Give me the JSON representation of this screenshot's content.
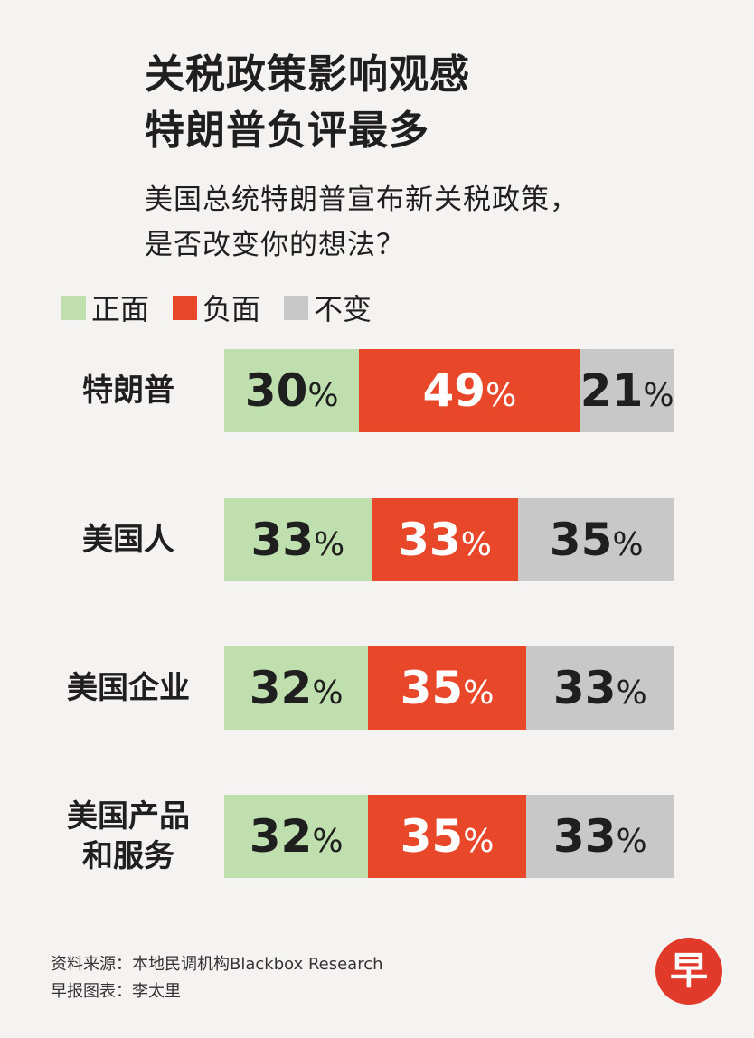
{
  "title_lines": [
    "关税政策影响观感",
    "特朗普负评最多"
  ],
  "subtitle_lines": [
    "美国总统特朗普宣布新关税政策，",
    "是否改变你的想法？"
  ],
  "colors": {
    "positive": "#bfe0ae",
    "negative": "#e9472a",
    "unchanged": "#c8c8c8"
  },
  "chart_data": {
    "type": "bar",
    "stacked": "100%",
    "orientation": "horizontal",
    "categories": [
      "特朗普",
      "美国人",
      "美国企业",
      "美国产品和服务"
    ],
    "category_lines": [
      [
        "特朗普"
      ],
      [
        "美国人"
      ],
      [
        "美国企业"
      ],
      [
        "美国产品",
        "和服务"
      ]
    ],
    "series": [
      {
        "name": "正面",
        "values": [
          30,
          33,
          32,
          32
        ]
      },
      {
        "name": "负面",
        "values": [
          49,
          33,
          35,
          35
        ]
      },
      {
        "name": "不变",
        "values": [
          21,
          35,
          33,
          33
        ]
      }
    ],
    "unit": "%",
    "legend_position": "top-left"
  },
  "footer": {
    "source": "资料来源：本地民调机构Blackbox Research",
    "credit": "早报图表：李太里"
  },
  "logo": {
    "glyph": "早",
    "color": "#e13a2a",
    "icon": "zaobao-logo-icon"
  }
}
